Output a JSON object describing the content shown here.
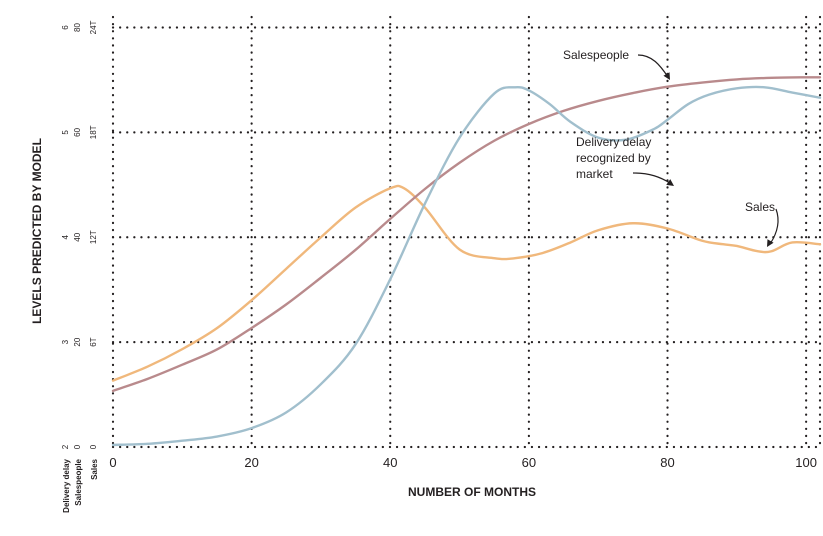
{
  "chart_data": {
    "type": "line",
    "title": "",
    "xlabel": "NUMBER OF MONTHS",
    "ylabel": "LEVELS PREDICTED BY MODEL",
    "xlim": [
      0,
      102
    ],
    "x_ticks": [
      "0",
      "20",
      "40",
      "60",
      "80",
      "100"
    ],
    "grid": true,
    "y_axes": [
      {
        "name": "Delivery delay",
        "ticks": [
          "2",
          "3",
          "4",
          "5",
          "6"
        ],
        "ylim": [
          2,
          6.1
        ]
      },
      {
        "name": "Salespeople",
        "ticks": [
          "0",
          "20",
          "40",
          "60",
          "80"
        ],
        "ylim": [
          0,
          82
        ]
      },
      {
        "name": "Sales",
        "ticks": [
          "0",
          "6T",
          "12T",
          "18T",
          "24T"
        ],
        "ylim": [
          0,
          24.6
        ]
      }
    ],
    "series": [
      {
        "name": "Salespeople",
        "axis": "Salespeople",
        "color": "#b98a8c",
        "x": [
          0,
          5,
          10,
          15,
          20,
          25,
          30,
          35,
          40,
          45,
          50,
          55,
          60,
          65,
          70,
          75,
          80,
          85,
          90,
          95,
          100,
          102
        ],
        "y": [
          10.7,
          13.0,
          15.7,
          18.6,
          22.7,
          27.2,
          32.3,
          37.6,
          43.5,
          49.2,
          54.2,
          58.4,
          61.6,
          64.1,
          66.0,
          67.5,
          68.7,
          69.5,
          70.1,
          70.4,
          70.5,
          70.5
        ]
      },
      {
        "name": "Delivery delay recognized by market",
        "axis": "Delivery delay",
        "color": "#a1bfcd",
        "x": [
          0,
          5,
          10,
          15,
          20,
          25,
          30,
          35,
          40,
          45,
          50,
          55,
          58,
          60,
          63,
          66,
          70,
          74,
          78,
          80,
          83,
          86,
          90,
          94,
          98,
          102
        ],
        "y": [
          2.02,
          2.03,
          2.06,
          2.1,
          2.18,
          2.33,
          2.6,
          2.98,
          3.6,
          4.32,
          4.95,
          5.37,
          5.43,
          5.4,
          5.27,
          5.1,
          4.95,
          4.93,
          5.03,
          5.12,
          5.27,
          5.36,
          5.42,
          5.43,
          5.38,
          5.33
        ]
      },
      {
        "name": "Sales",
        "axis": "Sales",
        "color": "#f0b87c",
        "x": [
          0,
          5,
          10,
          15,
          20,
          25,
          30,
          35,
          40,
          42,
          45,
          50,
          55,
          58,
          62,
          66,
          70,
          75,
          80,
          85,
          88,
          90,
          93,
          95,
          98,
          102
        ],
        "y": [
          3.8,
          4.6,
          5.6,
          6.8,
          8.4,
          10.2,
          12.0,
          13.7,
          14.8,
          14.8,
          13.7,
          11.3,
          10.8,
          10.8,
          11.1,
          11.7,
          12.4,
          12.8,
          12.5,
          11.8,
          11.6,
          11.5,
          11.2,
          11.2,
          11.7,
          11.6
        ]
      }
    ],
    "annotations": [
      {
        "text": "Salespeople",
        "series": "Salespeople"
      },
      {
        "text": "Delivery delay recognized by market",
        "lines": [
          "Delivery delay",
          "recognized by",
          "market"
        ],
        "series": "Delivery delay recognized by market"
      },
      {
        "text": "Sales",
        "series": "Sales"
      }
    ]
  }
}
